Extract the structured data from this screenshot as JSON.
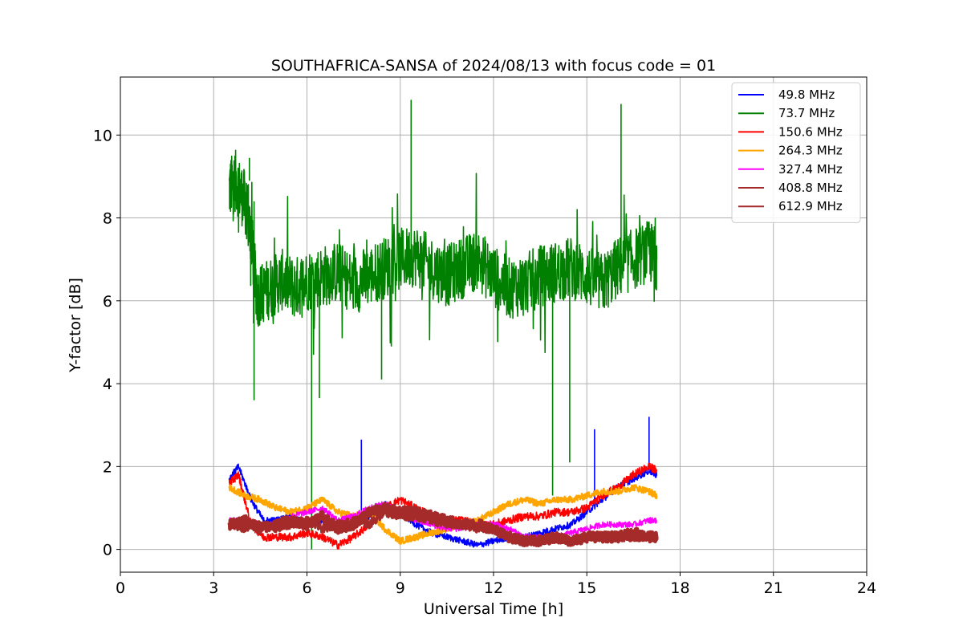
{
  "chart_data": {
    "type": "line",
    "title": "SOUTHAFRICA-SANSA of 2024/08/13 with focus code = 01",
    "xlabel": "Universal Time [h]",
    "ylabel": "Y-factor [dB]",
    "xlim": [
      0,
      24
    ],
    "ylim": [
      -0.55,
      11.4
    ],
    "x_ticks": [
      0,
      3,
      6,
      9,
      12,
      15,
      18,
      21,
      24
    ],
    "y_ticks": [
      0,
      2,
      4,
      6,
      8,
      10
    ],
    "grid": true,
    "legend_position": "top-right",
    "series": [
      {
        "name": "49.8 MHz",
        "color": "#0000ff",
        "x": [
          3.5,
          3.8,
          4.2,
          4.6,
          5.0,
          5.5,
          6.0,
          6.5,
          7.0,
          7.5,
          8.0,
          8.5,
          9.0,
          9.5,
          10.0,
          10.5,
          11.0,
          11.5,
          12.0,
          12.5,
          13.0,
          13.5,
          14.0,
          14.5,
          15.0,
          15.5,
          16.0,
          16.5,
          17.0,
          17.25
        ],
        "values": [
          1.7,
          2.0,
          1.2,
          0.7,
          0.7,
          0.8,
          0.6,
          0.7,
          0.5,
          0.6,
          0.8,
          1.1,
          0.9,
          0.6,
          0.4,
          0.3,
          0.2,
          0.1,
          0.2,
          0.3,
          0.3,
          0.4,
          0.5,
          0.6,
          0.9,
          1.2,
          1.5,
          1.7,
          1.9,
          1.8
        ]
      },
      {
        "name": "73.7 MHz",
        "color": "#008000",
        "x": [
          3.5,
          3.7,
          4.0,
          4.2,
          4.4,
          4.8,
          5.2,
          5.6,
          6.0,
          6.5,
          7.0,
          7.5,
          8.0,
          8.5,
          9.0,
          9.5,
          10.0,
          10.5,
          11.0,
          11.5,
          12.0,
          12.5,
          13.0,
          13.5,
          14.0,
          14.5,
          15.0,
          15.5,
          16.0,
          16.5,
          17.0,
          17.25
        ],
        "values": [
          8.7,
          8.9,
          8.4,
          7.6,
          6.1,
          6.3,
          6.5,
          6.3,
          6.5,
          6.6,
          6.7,
          6.4,
          6.6,
          6.8,
          7.0,
          7.1,
          6.8,
          6.6,
          6.8,
          7.0,
          6.6,
          6.3,
          6.4,
          6.6,
          6.7,
          6.8,
          6.6,
          6.4,
          6.8,
          7.0,
          7.2,
          7.0
        ]
      },
      {
        "name": "150.6 MHz",
        "color": "#ff0000",
        "x": [
          3.5,
          3.8,
          4.2,
          4.6,
          5.0,
          5.5,
          6.0,
          6.5,
          7.0,
          7.5,
          8.0,
          8.5,
          9.0,
          9.5,
          10.0,
          10.5,
          11.0,
          11.5,
          12.0,
          12.5,
          13.0,
          13.5,
          14.0,
          14.5,
          15.0,
          15.5,
          16.0,
          16.5,
          17.0,
          17.25
        ],
        "values": [
          1.6,
          1.8,
          0.6,
          0.3,
          0.3,
          0.3,
          0.4,
          0.3,
          0.1,
          0.3,
          0.6,
          1.0,
          1.2,
          1.0,
          0.8,
          0.7,
          0.7,
          0.6,
          0.6,
          0.7,
          0.8,
          0.8,
          0.9,
          0.9,
          1.0,
          1.3,
          1.5,
          1.8,
          2.0,
          1.9
        ]
      },
      {
        "name": "264.3 MHz",
        "color": "#ffa500",
        "x": [
          3.5,
          4.0,
          4.5,
          5.0,
          5.5,
          6.0,
          6.5,
          7.0,
          7.5,
          8.0,
          8.5,
          9.0,
          9.5,
          10.0,
          10.5,
          11.0,
          11.5,
          12.0,
          12.5,
          13.0,
          13.5,
          14.0,
          14.5,
          15.0,
          15.5,
          16.0,
          16.5,
          17.0,
          17.25
        ],
        "values": [
          1.5,
          1.3,
          1.2,
          1.0,
          0.9,
          1.0,
          1.2,
          0.9,
          0.8,
          0.9,
          0.5,
          0.2,
          0.3,
          0.4,
          0.5,
          0.6,
          0.7,
          0.9,
          1.1,
          1.2,
          1.1,
          1.2,
          1.2,
          1.3,
          1.4,
          1.4,
          1.5,
          1.4,
          1.3
        ]
      },
      {
        "name": "327.4 MHz",
        "color": "#ff00ff",
        "x": [
          3.5,
          4.0,
          4.5,
          5.0,
          5.5,
          6.0,
          6.5,
          7.0,
          7.5,
          8.0,
          8.5,
          9.0,
          9.5,
          10.0,
          10.5,
          11.0,
          11.5,
          12.0,
          12.5,
          13.0,
          13.5,
          14.0,
          14.5,
          15.0,
          15.5,
          16.0,
          16.5,
          17.0,
          17.25
        ],
        "values": [
          0.7,
          0.7,
          0.6,
          0.6,
          0.8,
          0.9,
          1.0,
          0.7,
          0.8,
          1.0,
          1.1,
          0.9,
          0.7,
          0.6,
          0.5,
          0.5,
          0.6,
          0.6,
          0.5,
          0.3,
          0.3,
          0.3,
          0.4,
          0.5,
          0.6,
          0.6,
          0.6,
          0.7,
          0.7
        ]
      },
      {
        "name": "408.8 MHz",
        "color": "#a52a2a",
        "x": [
          3.5,
          4.0,
          4.5,
          5.0,
          5.5,
          6.0,
          6.5,
          7.0,
          7.5,
          8.0,
          8.5,
          9.0,
          9.5,
          10.0,
          10.5,
          11.0,
          11.5,
          12.0,
          12.5,
          13.0,
          13.5,
          14.0,
          14.5,
          15.0,
          15.5,
          16.0,
          16.5,
          17.0,
          17.25
        ],
        "values": [
          0.6,
          0.5,
          0.6,
          0.5,
          0.6,
          0.7,
          0.5,
          0.6,
          0.7,
          0.6,
          0.9,
          0.8,
          0.8,
          0.7,
          0.6,
          0.6,
          0.5,
          0.5,
          0.3,
          0.2,
          0.2,
          0.3,
          0.2,
          0.3,
          0.3,
          0.3,
          0.3,
          0.3,
          0.3
        ]
      },
      {
        "name": "612.9 MHz",
        "color": "#a52a2a",
        "x": [
          3.5,
          4.0,
          4.5,
          5.0,
          5.5,
          6.0,
          6.5,
          7.0,
          7.5,
          8.0,
          8.5,
          9.0,
          9.5,
          10.0,
          10.5,
          11.0,
          11.5,
          12.0,
          12.5,
          13.0,
          13.5,
          14.0,
          14.5,
          15.0,
          15.5,
          16.0,
          16.5,
          17.0,
          17.25
        ],
        "values": [
          0.6,
          0.7,
          0.5,
          0.6,
          0.7,
          0.6,
          0.8,
          0.5,
          0.6,
          0.9,
          1.0,
          0.9,
          0.9,
          0.8,
          0.7,
          0.6,
          0.6,
          0.5,
          0.3,
          0.2,
          0.2,
          0.3,
          0.2,
          0.3,
          0.3,
          0.3,
          0.4,
          0.3,
          0.3
        ]
      }
    ],
    "annotations": [
      {
        "series": "73.7 MHz",
        "x": 4.3,
        "value": 3.6
      },
      {
        "series": "73.7 MHz",
        "x": 4.15,
        "value": 9.45
      },
      {
        "series": "73.7 MHz",
        "x": 6.15,
        "value": 0.0
      },
      {
        "series": "73.7 MHz",
        "x": 6.4,
        "value": 3.65
      },
      {
        "series": "73.7 MHz",
        "x": 8.4,
        "value": 4.1
      },
      {
        "series": "73.7 MHz",
        "x": 9.35,
        "value": 10.85
      },
      {
        "series": "73.7 MHz",
        "x": 13.9,
        "value": 1.3
      },
      {
        "series": "73.7 MHz",
        "x": 14.45,
        "value": 2.1
      },
      {
        "series": "73.7 MHz",
        "x": 16.1,
        "value": 10.75
      },
      {
        "series": "49.8 MHz",
        "x": 7.75,
        "value": 2.65
      },
      {
        "series": "49.8 MHz",
        "x": 15.25,
        "value": 2.9
      },
      {
        "series": "49.8 MHz",
        "x": 17.0,
        "value": 3.2
      }
    ]
  }
}
